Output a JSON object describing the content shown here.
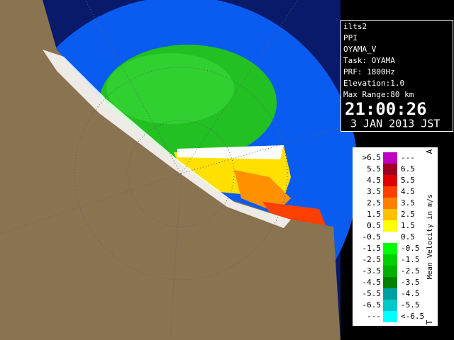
{
  "info": {
    "station": "ilts2",
    "mode": "PPI",
    "product": "OYAMA_V",
    "task": "Task: OYAMA",
    "prf": "PRF: 1800Hz",
    "elevation": "Elevation:1.0",
    "max_range": "Max Range:80 km",
    "time": "21:00:26",
    "date": "3 JAN 2013 JST"
  },
  "legend": {
    "title": "Mean Velocity in m/s",
    "top_marker": "A",
    "bottom_marker": "T",
    "rows": [
      {
        "left": ">6.5",
        "right": "---",
        "color": "#c000c0"
      },
      {
        "left": "5.5",
        "right": "6.5",
        "color": "#a00020"
      },
      {
        "left": "4.5",
        "right": "5.5",
        "color": "#e00000"
      },
      {
        "left": "3.5",
        "right": "4.5",
        "color": "#ff4000"
      },
      {
        "left": "2.5",
        "right": "3.5",
        "color": "#ff8000"
      },
      {
        "left": "1.5",
        "right": "2.5",
        "color": "#ffc000"
      },
      {
        "left": "0.5",
        "right": "1.5",
        "color": "#ffff00"
      },
      {
        "left": "-0.5",
        "right": "0.5",
        "color": "#ffffff"
      },
      {
        "left": "-1.5",
        "right": "-0.5",
        "color": "#00ff00"
      },
      {
        "left": "-2.5",
        "right": "-1.5",
        "color": "#00d000"
      },
      {
        "left": "-3.5",
        "right": "-2.5",
        "color": "#00b000"
      },
      {
        "left": "-4.5",
        "right": "-3.5",
        "color": "#008000"
      },
      {
        "left": "-5.5",
        "right": "-4.5",
        "color": "#00a0a0"
      },
      {
        "left": "-6.5",
        "right": "-5.5",
        "color": "#00c8c8"
      },
      {
        "left": "---",
        "right": "<-6.5",
        "color": "#00ffff"
      }
    ]
  }
}
